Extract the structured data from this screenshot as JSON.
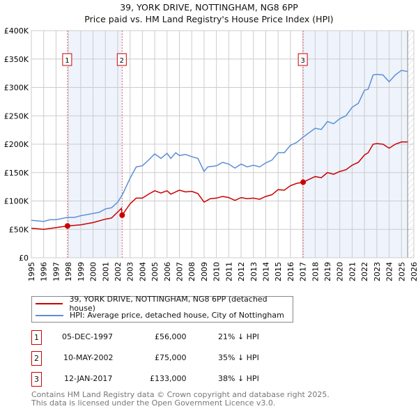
{
  "title_line1": "39, YORK DRIVE, NOTTINGHAM, NG8 6PP",
  "title_line2": "Price paid vs. HM Land Registry's House Price Index (HPI)",
  "chart_data": {
    "type": "line",
    "title": "39, YORK DRIVE, NOTTINGHAM, NG8 6PP — Price paid vs. HM Land Registry's House Price Index (HPI)",
    "xlim": [
      1995,
      2026
    ],
    "ylim": [
      0,
      400000
    ],
    "yticks": [
      0,
      50000,
      100000,
      150000,
      200000,
      250000,
      300000,
      350000,
      400000
    ],
    "ytick_labels": [
      "£0",
      "£50K",
      "£100K",
      "£150K",
      "£200K",
      "£250K",
      "£300K",
      "£350K",
      "£400K"
    ],
    "xticks": [
      1995,
      1996,
      1997,
      1998,
      1999,
      2000,
      2001,
      2002,
      2003,
      2004,
      2005,
      2006,
      2007,
      2008,
      2009,
      2010,
      2011,
      2012,
      2013,
      2014,
      2015,
      2016,
      2017,
      2018,
      2019,
      2020,
      2021,
      2022,
      2023,
      2024,
      2025,
      2026
    ],
    "grid": true,
    "series": [
      {
        "name": "39, YORK DRIVE, NOTTINGHAM, NG8 6PP (detached house)",
        "color": "#cc0000",
        "x": [
          1995,
          1996,
          1997,
          1997.93,
          1998.5,
          1999,
          2000,
          2001,
          2001.5,
          2002.3,
          2002.36,
          2003,
          2003.5,
          2004,
          2004.5,
          2005,
          2005.5,
          2006,
          2006.3,
          2007,
          2007.5,
          2008,
          2008.5,
          2009,
          2009.5,
          2010,
          2010.5,
          2011,
          2011.5,
          2012,
          2012.5,
          2013,
          2013.5,
          2014,
          2014.5,
          2015,
          2015.5,
          2016,
          2016.5,
          2017.03,
          2017.5,
          2018,
          2018.5,
          2019,
          2019.5,
          2020,
          2020.5,
          2021,
          2021.5,
          2022,
          2022.3,
          2022.7,
          2023,
          2023.5,
          2024,
          2024.5,
          2025,
          2025.5
        ],
        "y": [
          52,
          50,
          53,
          56,
          57,
          58,
          62,
          68,
          70,
          87,
          75,
          95,
          105,
          105,
          112,
          118,
          114,
          118,
          112,
          119,
          116,
          117,
          113,
          98,
          104,
          105,
          108,
          106,
          101,
          106,
          104,
          105,
          103,
          108,
          111,
          120,
          119,
          127,
          131,
          133,
          138,
          143,
          141,
          150,
          147,
          152,
          155,
          163,
          168,
          181,
          185,
          200,
          201,
          200,
          193,
          200,
          204,
          204
        ]
      },
      {
        "name": "HPI: Average price, detached house, City of Nottingham",
        "color": "#5b8fd6",
        "x": [
          1995,
          1996,
          1996.5,
          1997,
          1997.9,
          1998.5,
          1999,
          2000,
          2000.5,
          2001,
          2001.5,
          2002,
          2002.4,
          2003,
          2003.5,
          2004,
          2004.5,
          2005,
          2005.5,
          2006,
          2006.3,
          2006.7,
          2007,
          2007.5,
          2008,
          2008.5,
          2009,
          2009.3,
          2010,
          2010.5,
          2011,
          2011.5,
          2012,
          2012.5,
          2013,
          2013.5,
          2014,
          2014.5,
          2015,
          2015.5,
          2016,
          2016.5,
          2017,
          2017.5,
          2018,
          2018.5,
          2019,
          2019.5,
          2020,
          2020.5,
          2021,
          2021.5,
          2022,
          2022.3,
          2022.7,
          2023,
          2023.5,
          2024,
          2024.5,
          2025,
          2025.5
        ],
        "y": [
          66,
          64,
          67,
          67,
          71,
          71,
          74,
          78,
          80,
          86,
          88,
          98,
          112,
          140,
          160,
          162,
          172,
          183,
          175,
          184,
          175,
          185,
          180,
          182,
          178,
          175,
          152,
          160,
          162,
          168,
          165,
          158,
          165,
          160,
          163,
          160,
          167,
          172,
          185,
          185,
          198,
          203,
          212,
          220,
          228,
          226,
          240,
          236,
          245,
          250,
          265,
          272,
          295,
          297,
          322,
          323,
          322,
          310,
          322,
          330,
          328
        ]
      }
    ],
    "y_units": "thousands GBP",
    "sales": [
      {
        "label": "1",
        "x": 1997.93,
        "y": 56
      },
      {
        "label": "2",
        "x": 2002.36,
        "y": 75
      },
      {
        "label": "3",
        "x": 2017.03,
        "y": 133
      }
    ],
    "shaded_ranges": [
      [
        1997.93,
        2002.36
      ],
      [
        2017.03,
        2025.5
      ]
    ],
    "forecast_hatch_from": 2025.5,
    "legend_position": "below"
  },
  "legend": {
    "property": "39, YORK DRIVE, NOTTINGHAM, NG8 6PP (detached house)",
    "hpi": "HPI: Average price, detached house, City of Nottingham"
  },
  "transactions": [
    {
      "num": "1",
      "date": "05-DEC-1997",
      "price": "£56,000",
      "diff": "21% ↓ HPI"
    },
    {
      "num": "2",
      "date": "10-MAY-2002",
      "price": "£75,000",
      "diff": "35% ↓ HPI"
    },
    {
      "num": "3",
      "date": "12-JAN-2017",
      "price": "£133,000",
      "diff": "38% ↓ HPI"
    }
  ],
  "footer": {
    "line1": "Contains HM Land Registry data © Crown copyright and database right 2025.",
    "line2": "This data is licensed under the Open Government Licence v3.0."
  }
}
